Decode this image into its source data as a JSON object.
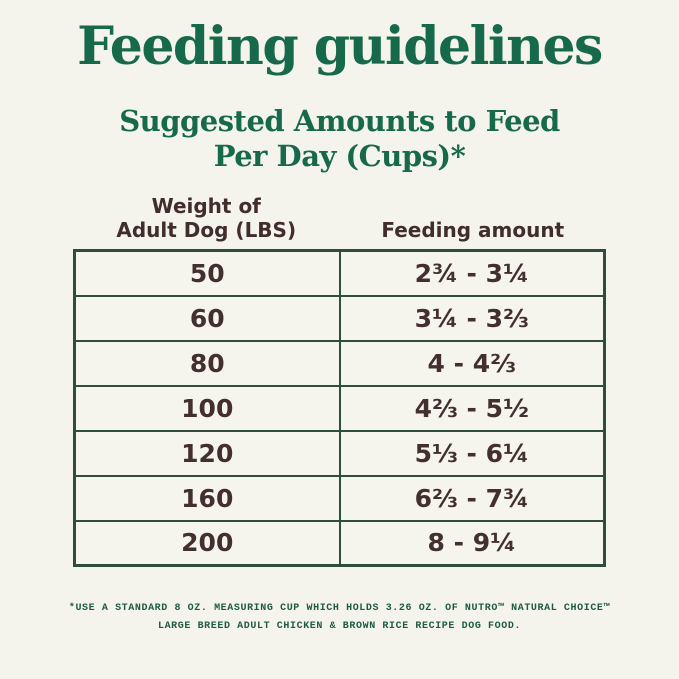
{
  "page": {
    "background_color": "#F4F3EC",
    "title": "Feeding guidelines",
    "title_color": "#17694B",
    "subtitle_line1": "Suggested Amounts to Feed",
    "subtitle_line2": "Per Day (Cups)*"
  },
  "table": {
    "border_color": "#2E4D3D",
    "text_color": "#432F2B",
    "col1_header_line1": "Weight of",
    "col1_header_line2": "Adult Dog (LBS)",
    "col2_header": "Feeding amount",
    "rows": [
      {
        "weight": "50",
        "amount": "2¾ - 3¼"
      },
      {
        "weight": "60",
        "amount": "3¼ - 3⅔"
      },
      {
        "weight": "80",
        "amount": "4 - 4⅔"
      },
      {
        "weight": "100",
        "amount": "4⅔ - 5½"
      },
      {
        "weight": "120",
        "amount": "5⅓ - 6¼"
      },
      {
        "weight": "160",
        "amount": "6⅔ - 7¾"
      },
      {
        "weight": "200",
        "amount": "8 - 9¼"
      }
    ]
  },
  "footnote": {
    "color": "#1E5B41",
    "line1": "*USE A STANDARD 8 OZ. MEASURING CUP WHICH HOLDS 3.26 OZ. OF NUTRO™ NATURAL CHOICE™",
    "line2": "LARGE BREED ADULT CHICKEN & BROWN RICE RECIPE DOG FOOD."
  }
}
